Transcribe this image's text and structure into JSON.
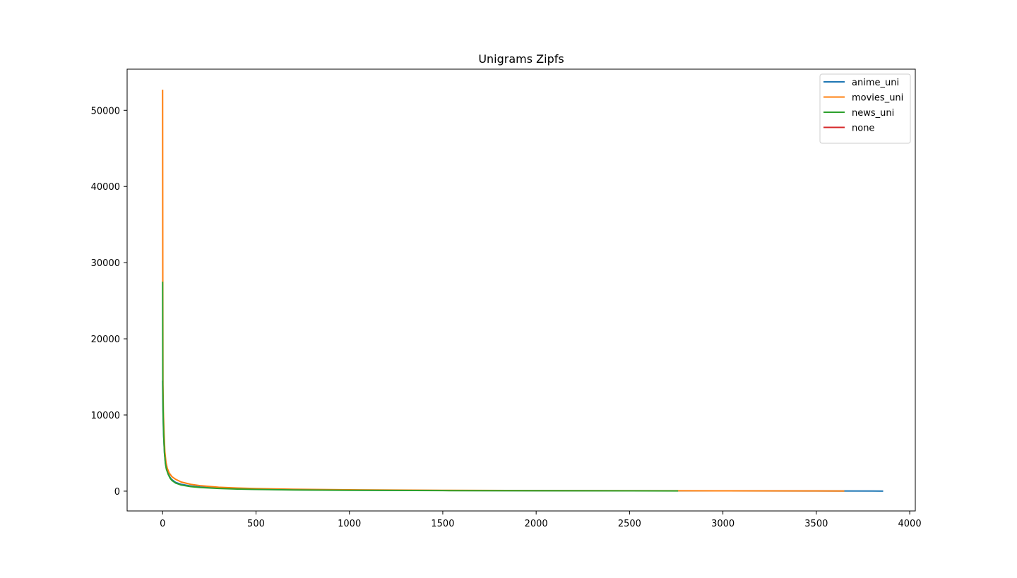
{
  "chart_data": {
    "type": "line",
    "title": "Unigrams Zipfs",
    "xlabel": "",
    "ylabel": "",
    "xlim": [
      -190,
      4030
    ],
    "ylim": [
      -2600,
      55400
    ],
    "xticks": [
      0,
      500,
      1000,
      1500,
      2000,
      2500,
      3000,
      3500,
      4000
    ],
    "yticks": [
      0,
      10000,
      20000,
      30000,
      40000,
      50000
    ],
    "grid": false,
    "legend_position": "top-right",
    "series": [
      {
        "name": "anime_uni",
        "color": "#1f77b4",
        "points": [
          [
            0,
            14500
          ],
          [
            2,
            10500
          ],
          [
            5,
            7500
          ],
          [
            10,
            5000
          ],
          [
            15,
            3700
          ],
          [
            20,
            3000
          ],
          [
            30,
            2300
          ],
          [
            40,
            1800
          ],
          [
            50,
            1500
          ],
          [
            70,
            1150
          ],
          [
            100,
            900
          ],
          [
            150,
            680
          ],
          [
            200,
            550
          ],
          [
            300,
            400
          ],
          [
            400,
            310
          ],
          [
            500,
            250
          ],
          [
            700,
            180
          ],
          [
            1000,
            130
          ],
          [
            1500,
            85
          ],
          [
            2000,
            60
          ],
          [
            2500,
            45
          ],
          [
            3000,
            35
          ],
          [
            3500,
            25
          ],
          [
            3800,
            15
          ],
          [
            3858,
            2
          ]
        ]
      },
      {
        "name": "movies_uni",
        "color": "#ff7f0e",
        "points": [
          [
            0,
            52700
          ],
          [
            1,
            27500
          ],
          [
            2,
            14000
          ],
          [
            4,
            10500
          ],
          [
            8,
            7500
          ],
          [
            12,
            5200
          ],
          [
            18,
            3800
          ],
          [
            25,
            3000
          ],
          [
            35,
            2400
          ],
          [
            50,
            1900
          ],
          [
            70,
            1550
          ],
          [
            100,
            1200
          ],
          [
            150,
            900
          ],
          [
            200,
            720
          ],
          [
            300,
            520
          ],
          [
            400,
            410
          ],
          [
            500,
            340
          ],
          [
            700,
            250
          ],
          [
            1000,
            180
          ],
          [
            1500,
            115
          ],
          [
            2000,
            80
          ],
          [
            2500,
            60
          ],
          [
            3000,
            45
          ],
          [
            3500,
            30
          ],
          [
            3650,
            20
          ]
        ]
      },
      {
        "name": "news_uni",
        "color": "#2ca02c",
        "points": [
          [
            0,
            27500
          ],
          [
            1,
            14000
          ],
          [
            3,
            10000
          ],
          [
            6,
            7200
          ],
          [
            10,
            5000
          ],
          [
            15,
            3600
          ],
          [
            20,
            2900
          ],
          [
            30,
            2200
          ],
          [
            40,
            1700
          ],
          [
            50,
            1400
          ],
          [
            70,
            1050
          ],
          [
            100,
            800
          ],
          [
            150,
            600
          ],
          [
            200,
            480
          ],
          [
            300,
            350
          ],
          [
            400,
            270
          ],
          [
            500,
            220
          ],
          [
            700,
            160
          ],
          [
            1000,
            110
          ],
          [
            1500,
            70
          ],
          [
            2000,
            50
          ],
          [
            2500,
            35
          ],
          [
            2760,
            25
          ]
        ]
      },
      {
        "name": "none",
        "color": "#d62728",
        "points": []
      }
    ]
  }
}
